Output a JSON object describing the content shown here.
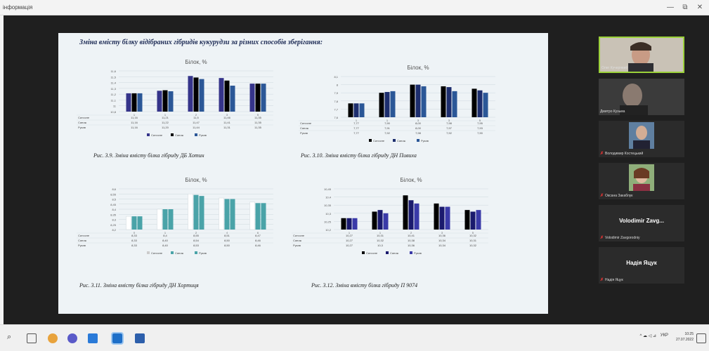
{
  "window": {
    "title": "інформація",
    "btn_minimize": "—",
    "btn_restore": "⧉",
    "btn_close": "✕"
  },
  "slide": {
    "heading": "Зміна вмісту білку відібраних гібридів кукурудзи за різних способів зберігання:",
    "captions": [
      "Рис. 3.9. Зміна вмісту білка гібриду ДБ Хотин",
      "Рис. 3.10. Зміна вмісту білка гібриду ДН Пивиха",
      "Рис. 3.11. Зміна вмісту білка гібриду ДН Хортиця",
      "Рис. 3.12. Зміна вмісту білка гібриду П 9074"
    ]
  },
  "chart_data": [
    {
      "type": "bar",
      "title": "Білок, %",
      "categories": [
        "1",
        "1",
        "2",
        "3",
        "5"
      ],
      "ylim": [
        10.8,
        11.6
      ],
      "yticks": [
        "10,8",
        "11",
        "11,1",
        "11,2",
        "11,3",
        "11,4",
        "11,5",
        "11,6"
      ],
      "series": [
        {
          "name": "Силосне",
          "values": [
            11.16,
            11.21,
            11.5,
            11.46,
            11.35
          ],
          "labels": [
            "11,16",
            "11,21",
            "11,5",
            "11,46",
            "11,35"
          ],
          "color": "#35348a"
        },
        {
          "name": "Сапож",
          "values": [
            11.16,
            11.22,
            11.47,
            11.41,
            11.35
          ],
          "labels": [
            "11,16",
            "11,22",
            "11,47",
            "11,41",
            "11,35"
          ],
          "color": "#000000"
        },
        {
          "name": "Рукав",
          "values": [
            11.16,
            11.2,
            11.44,
            11.31,
            11.35
          ],
          "labels": [
            "11,16",
            "11,20",
            "11,44",
            "11,31",
            "11,35"
          ],
          "color": "#2b5797"
        }
      ],
      "legend": [
        "Силосне",
        "Сапож",
        "Рукав"
      ]
    },
    {
      "type": "bar",
      "title": "Білок, %",
      "categories": [
        "1",
        "1",
        "3",
        "3",
        "5"
      ],
      "ylim": [
        7.6,
        8.1
      ],
      "yticks": [
        "7,6",
        "7,7",
        "7,8",
        "7,9",
        "8",
        "8,1"
      ],
      "series": [
        {
          "name": "Силосне",
          "values": [
            7.77,
            7.9,
            8.0,
            7.98,
            7.95
          ],
          "labels": [
            "7,77",
            "7,90",
            "8,00",
            "7,98",
            "7,95"
          ],
          "color": "#000000"
        },
        {
          "name": "Сапож",
          "values": [
            7.77,
            7.91,
            8.0,
            7.97,
            7.93
          ],
          "labels": [
            "7,77",
            "7,91",
            "8,00",
            "7,97",
            "7,93"
          ],
          "color": "#1d2e6e"
        },
        {
          "name": "Рукав",
          "values": [
            7.77,
            7.92,
            7.98,
            7.92,
            7.9
          ],
          "labels": [
            "7,77",
            "7,92",
            "7,98",
            "7,92",
            "7,90"
          ],
          "color": "#2b5797"
        }
      ],
      "legend": [
        "Силосне",
        "Сапож",
        "Рукав"
      ]
    },
    {
      "type": "bar",
      "title": "Білок, %",
      "categories": [
        "0",
        "1",
        "2",
        "4",
        "6"
      ],
      "ylim": [
        8.2,
        8.6
      ],
      "yticks": [
        "8,2",
        "8,25",
        "8,3",
        "8,35",
        "8,4",
        "8,45",
        "8,5",
        "8,55",
        "8,6"
      ],
      "series": [
        {
          "name": "Силосне",
          "values": [
            8.33,
            8.4,
            8.55,
            8.51,
            8.47
          ],
          "labels": [
            "8,33",
            "8,4",
            "8,55",
            "8,51",
            "8,47"
          ],
          "color": "#ffffff"
        },
        {
          "name": "Сапож",
          "values": [
            8.33,
            8.4,
            8.54,
            8.5,
            8.46
          ],
          "labels": [
            "8,33",
            "8,40",
            "8,54",
            "8,50",
            "8,46"
          ],
          "color": "#4aa3a8"
        },
        {
          "name": "Рукав",
          "values": [
            8.33,
            8.4,
            8.53,
            8.5,
            8.46
          ],
          "labels": [
            "8,33",
            "8,40",
            "8,53",
            "8,50",
            "8,46"
          ],
          "color": "#4aa3a8"
        }
      ],
      "legend": [
        "Силосне",
        "Сапож",
        "Рукав"
      ]
    },
    {
      "type": "bar",
      "title": "Білок, %",
      "categories": [
        "1",
        "1",
        "2",
        "3",
        "5"
      ],
      "ylim": [
        10.2,
        10.45
      ],
      "yticks": [
        "10,2",
        "10,25",
        "10,3",
        "10,35",
        "10,4",
        "10,45"
      ],
      "series": [
        {
          "name": "Силосне",
          "values": [
            10.27,
            10.31,
            10.41,
            10.36,
            10.32
          ],
          "labels": [
            "10,27",
            "10,31",
            "10,41",
            "10,36",
            "10,32"
          ],
          "color": "#000000"
        },
        {
          "name": "Сапож",
          "values": [
            10.27,
            10.32,
            10.38,
            10.34,
            10.31
          ],
          "labels": [
            "10,27",
            "10,32",
            "10,38",
            "10,34",
            "10,31"
          ],
          "color": "#1a1a6e"
        },
        {
          "name": "Рукав",
          "values": [
            10.27,
            10.3,
            10.36,
            10.34,
            10.32
          ],
          "labels": [
            "10,27",
            "10,3",
            "10,36",
            "10,34",
            "10,32"
          ],
          "color": "#3a3aa8"
        }
      ],
      "legend": [
        "Силосне",
        "Сапож",
        "Рукав"
      ]
    }
  ],
  "participants": [
    {
      "name": "Олег Кучерявий",
      "kind": "video",
      "active": true,
      "muted": false
    },
    {
      "name": "Дмитро Кузьма",
      "kind": "video",
      "active": false,
      "muted": false
    },
    {
      "name": "Володимир Костецький",
      "kind": "video",
      "active": false,
      "muted": true
    },
    {
      "name": "Оксана Закаблук",
      "kind": "video",
      "active": false,
      "muted": true
    },
    {
      "name": "Volodimir Zavgorodniy",
      "big": "Volodimir Zavg...",
      "kind": "name",
      "active": false,
      "muted": true
    },
    {
      "name": "Надія Яцук",
      "big": "Надія Яцук",
      "kind": "name",
      "active": false,
      "muted": true
    }
  ],
  "taskbar": {
    "time": "10:25",
    "date": "27.07.2022",
    "lang": "УКР",
    "tray": "^ ☁ ◁ ⊿"
  },
  "colors": {
    "meeting_bg": "#1f1f1f",
    "slide_bg": "#eef3f6",
    "active_border": "#9bd13a",
    "muted": "#e33333"
  }
}
